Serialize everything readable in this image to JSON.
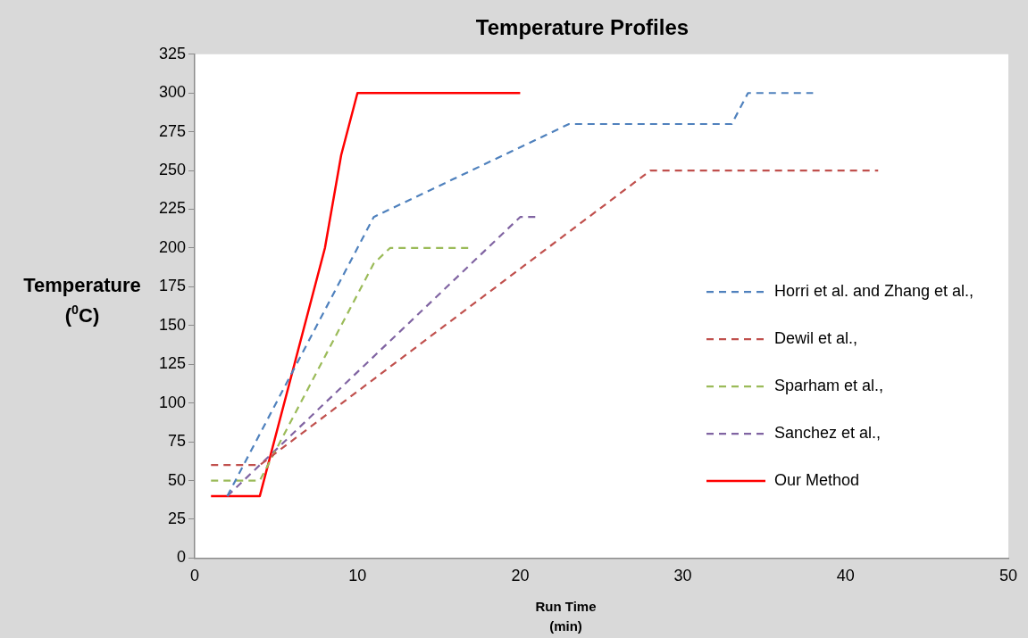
{
  "chart_data": {
    "type": "line",
    "title": "Temperature Profiles",
    "xlabel": "Run Time (min)",
    "ylabel": "Temperature ($^{0}$C)",
    "xlim": [
      0,
      50
    ],
    "xticks": [
      0,
      10,
      20,
      30,
      40,
      50
    ],
    "ylim": [
      0,
      325
    ],
    "yticks": [
      0,
      25,
      50,
      75,
      100,
      125,
      150,
      175,
      200,
      225,
      250,
      275,
      300,
      325
    ],
    "grid": false,
    "legend": "right",
    "marker": "none",
    "series": [
      {
        "name": "Horri et al. and Zhang et al.,",
        "color": "#4f81bd",
        "line_style": "dashed",
        "x": [
          2,
          11,
          23,
          33,
          34,
          38
        ],
        "values": [
          40,
          220,
          280,
          280,
          300,
          300
        ]
      },
      {
        "name": "Dewil et al.,",
        "color": "#c0504d",
        "line_style": "dashed",
        "x": [
          1,
          4,
          28,
          42
        ],
        "values": [
          60,
          60,
          250,
          250
        ]
      },
      {
        "name": "Sparham et al.,",
        "color": "#9bbb59",
        "line_style": "dashed",
        "x": [
          1,
          4,
          11,
          12,
          17
        ],
        "values": [
          50,
          50,
          190,
          200,
          200
        ]
      },
      {
        "name": "Sanchez et al.,",
        "color": "#8064a2",
        "line_style": "dashed",
        "x": [
          2,
          20,
          21
        ],
        "values": [
          40,
          220,
          220
        ]
      },
      {
        "name": "Our Method",
        "color": "#ff0000",
        "line_style": "solid",
        "x": [
          1,
          4,
          8,
          9,
          10,
          20
        ],
        "values": [
          40,
          40,
          200,
          260,
          300,
          300
        ]
      }
    ]
  }
}
